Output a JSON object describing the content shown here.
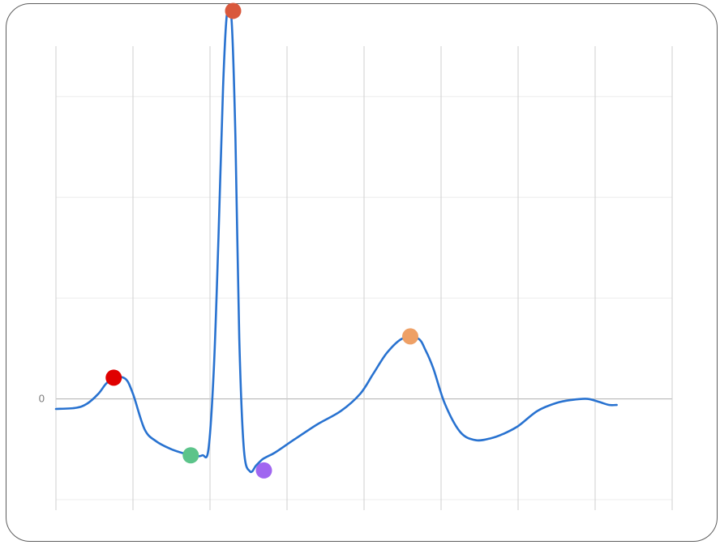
{
  "chart_data": {
    "type": "line",
    "title": "",
    "xlabel": "",
    "ylabel": "",
    "xlim": [
      0,
      800
    ],
    "ylim": [
      -1,
      3.5
    ],
    "x_gridlines": [
      0,
      100,
      200,
      300,
      400,
      500,
      600,
      700,
      800
    ],
    "y_gridlines": [
      -1,
      0,
      1,
      2,
      3
    ],
    "y_tick_labels": [
      {
        "value": 0,
        "label": "0"
      }
    ],
    "grid": true,
    "series": [
      {
        "color": "#2872d0",
        "x": [
          0,
          25,
          40,
          55,
          65,
          75,
          90,
          100,
          115,
          130,
          150,
          170,
          180,
          190,
          198,
          205,
          211,
          217,
          222,
          228,
          233,
          238,
          244,
          252,
          260,
          268,
          275,
          285,
          310,
          340,
          370,
          395,
          412,
          430,
          450,
          470,
          480,
          490,
          505,
          525,
          545,
          565,
          580,
          600,
          625,
          650,
          670,
          690,
          705,
          718,
          728
        ],
        "y": [
          -0.1,
          -0.09,
          -0.05,
          0.05,
          0.15,
          0.21,
          0.2,
          0.05,
          -0.3,
          -0.42,
          -0.5,
          -0.55,
          -0.57,
          -0.56,
          -0.5,
          0.3,
          1.6,
          3.1,
          3.82,
          3.76,
          2.6,
          0.6,
          -0.5,
          -0.72,
          -0.66,
          -0.6,
          -0.57,
          -0.53,
          -0.4,
          -0.25,
          -0.12,
          0.05,
          0.25,
          0.46,
          0.6,
          0.6,
          0.48,
          0.3,
          -0.05,
          -0.33,
          -0.41,
          -0.39,
          -0.35,
          -0.27,
          -0.12,
          -0.04,
          -0.01,
          -0.0,
          -0.03,
          -0.06,
          -0.06
        ]
      }
    ],
    "markers": [
      {
        "x": 75,
        "y": 0.21,
        "color": "#e00000"
      },
      {
        "x": 175,
        "y": -0.56,
        "color": "#5cc48a"
      },
      {
        "x": 230,
        "y": 3.85,
        "color": "#d9583c"
      },
      {
        "x": 270,
        "y": -0.71,
        "color": "#a066f0"
      },
      {
        "x": 460,
        "y": 0.62,
        "color": "#eea066"
      }
    ],
    "colors": {
      "grid": "#cfcfcf",
      "grid_light": "#ececec",
      "zero_axis": "#b8b8b8",
      "border": "#5e5e5e"
    }
  }
}
